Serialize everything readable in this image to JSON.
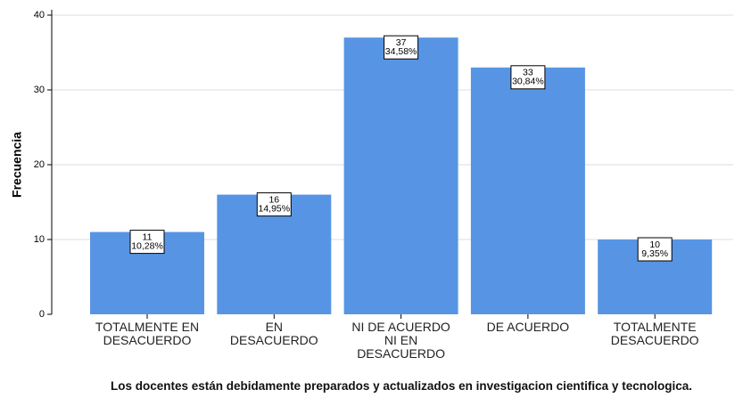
{
  "chart_data": {
    "type": "bar",
    "title": "Los docentes están debidamente preparados y actualizados en investigacion cientifica y tecnologica.",
    "y_label": "Frecuencia",
    "categories": [
      "TOTALMENTE EN\nDESACUERDO",
      "EN\nDESACUERDO",
      "NI DE ACUERDO\nNI EN\nDESACUERDO",
      "DE ACUERDO",
      "TOTALMENTE\nDESACUERDO"
    ],
    "values": [
      11,
      16,
      37,
      33,
      10
    ],
    "percentages": [
      10.28,
      14.95,
      34.58,
      30.84,
      9.35
    ],
    "percentage_labels": [
      "10,28%",
      "14,95%",
      "34,58%",
      "30,84%",
      "9,35%"
    ],
    "color": "#5795e4",
    "ylim": [
      0,
      40
    ],
    "yticks": [
      0,
      10,
      20,
      30,
      40
    ],
    "grid": true
  }
}
